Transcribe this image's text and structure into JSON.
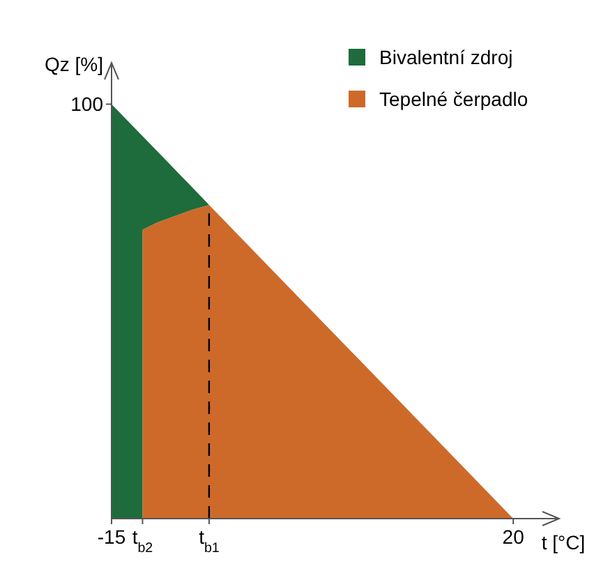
{
  "chart_data": {
    "type": "area",
    "stacked": true,
    "xlabel": "t [°C]",
    "ylabel": "Qz [%]",
    "x": [
      -15,
      -12.3,
      -12.3,
      -11,
      -9.5,
      -8,
      -6.5,
      0,
      10,
      20
    ],
    "series": [
      {
        "name": "Tepelné čerpadlo",
        "color": "#cd6a2a",
        "values": [
          0,
          0,
          69.7,
          71.5,
          73,
          74.5,
          75.7,
          57.1,
          28.6,
          0
        ]
      },
      {
        "name": "Bivalentní zdroj",
        "color": "#1e6b3c",
        "values": [
          100,
          92.3,
          22.6,
          17.1,
          11.3,
          5.5,
          0,
          0,
          0,
          0
        ]
      }
    ],
    "xlim": [
      -15,
      24
    ],
    "ylim": [
      0,
      110
    ],
    "xticks": [
      -15,
      {
        "value": -12.3,
        "label": "t$_{b2}$"
      },
      {
        "value": -6.5,
        "label": "t$_{b1}$"
      },
      20
    ],
    "yticks": [
      100
    ],
    "ref_lines": [
      {
        "axis": "x",
        "value": -6.5,
        "line_style": "dashed",
        "color": "#000000"
      }
    ],
    "legend": "top right",
    "grid": false
  }
}
